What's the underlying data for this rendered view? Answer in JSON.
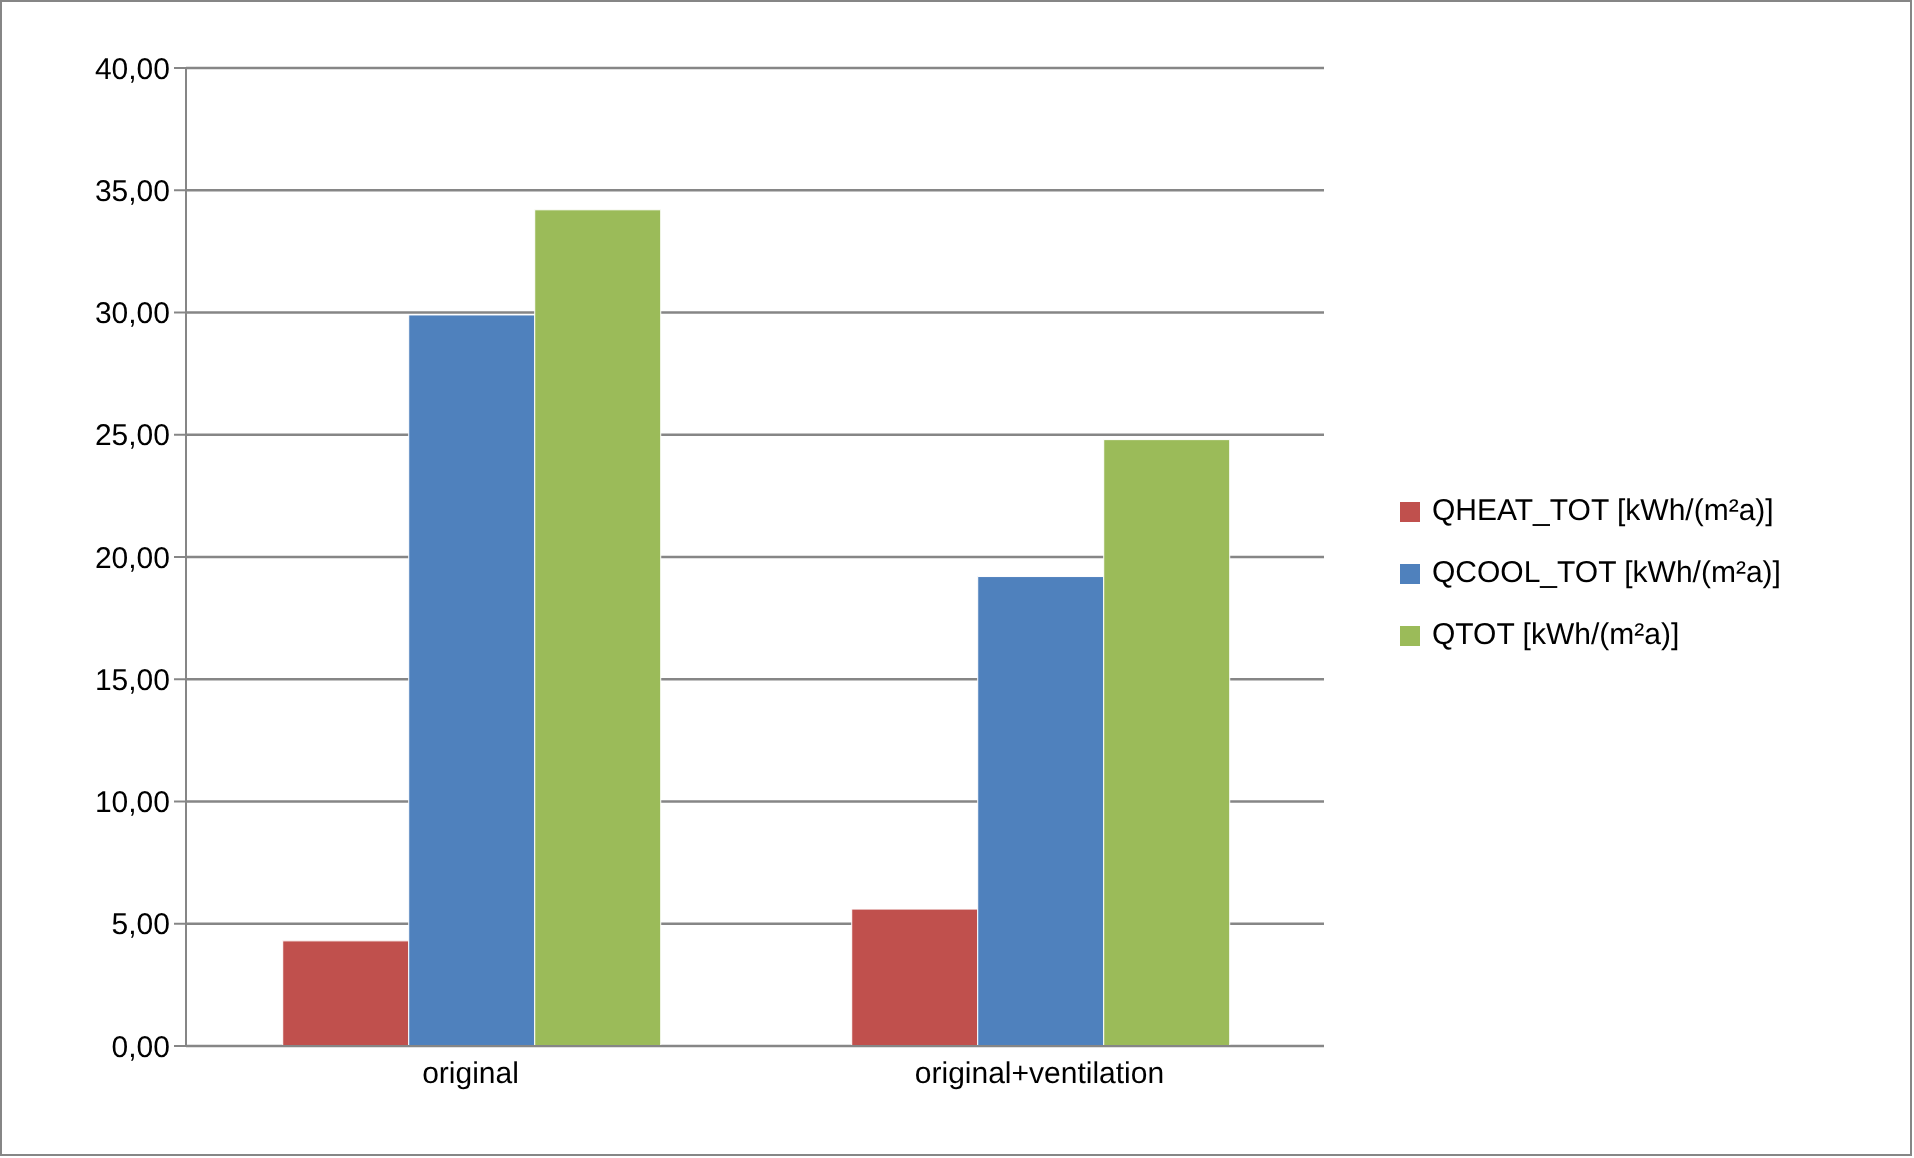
{
  "chart_data": {
    "type": "bar",
    "categories": [
      "original",
      "original+ventilation"
    ],
    "series": [
      {
        "name": "QHEAT_TOT [kWh/(m²a)]",
        "color": "#c0504d",
        "values": [
          4.3,
          5.6
        ]
      },
      {
        "name": "QCOOL_TOT [kWh/(m²a)]",
        "color": "#4f81bd",
        "values": [
          29.9,
          19.2
        ]
      },
      {
        "name": "QTOT [kWh/(m²a)]",
        "color": "#9bbb59",
        "values": [
          34.2,
          24.8
        ]
      }
    ],
    "ylim": [
      0,
      40
    ],
    "yticks": [
      {
        "value": 0,
        "label": "0,00"
      },
      {
        "value": 5,
        "label": "5,00"
      },
      {
        "value": 10,
        "label": "10,00"
      },
      {
        "value": 15,
        "label": "15,00"
      },
      {
        "value": 20,
        "label": "20,00"
      },
      {
        "value": 25,
        "label": "25,00"
      },
      {
        "value": 30,
        "label": "30,00"
      },
      {
        "value": 35,
        "label": "35,00"
      },
      {
        "value": 40,
        "label": "40,00"
      }
    ],
    "grid": "y",
    "legend": "right"
  }
}
